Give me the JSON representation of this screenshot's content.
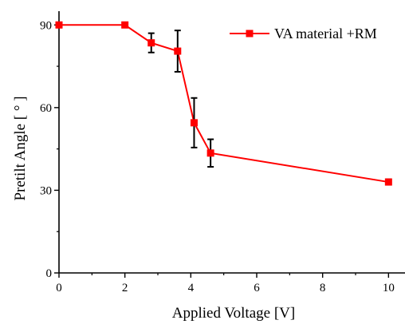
{
  "chart_data": {
    "type": "line",
    "xlabel": "Applied Voltage [V]",
    "ylabel": "Pretilt Angle [ ° ]",
    "xlim": [
      0,
      10.5
    ],
    "ylim": [
      0,
      95
    ],
    "xticks": [
      0,
      2,
      4,
      6,
      8,
      10
    ],
    "yticks": [
      0,
      30,
      60,
      90
    ],
    "grid": false,
    "legend_position": "top-right",
    "series": [
      {
        "name": "VA material +RM",
        "color": "#ff0000",
        "marker": "square",
        "points": [
          {
            "x": 0,
            "y": 90,
            "err": 0
          },
          {
            "x": 2,
            "y": 90,
            "err": 0
          },
          {
            "x": 2.8,
            "y": 83.5,
            "err": 3.5
          },
          {
            "x": 3.6,
            "y": 80.5,
            "err": 7.5
          },
          {
            "x": 4.1,
            "y": 54.5,
            "err": 9
          },
          {
            "x": 4.6,
            "y": 43.5,
            "err": 5
          },
          {
            "x": 10,
            "y": 33,
            "err": 1
          }
        ]
      }
    ]
  }
}
